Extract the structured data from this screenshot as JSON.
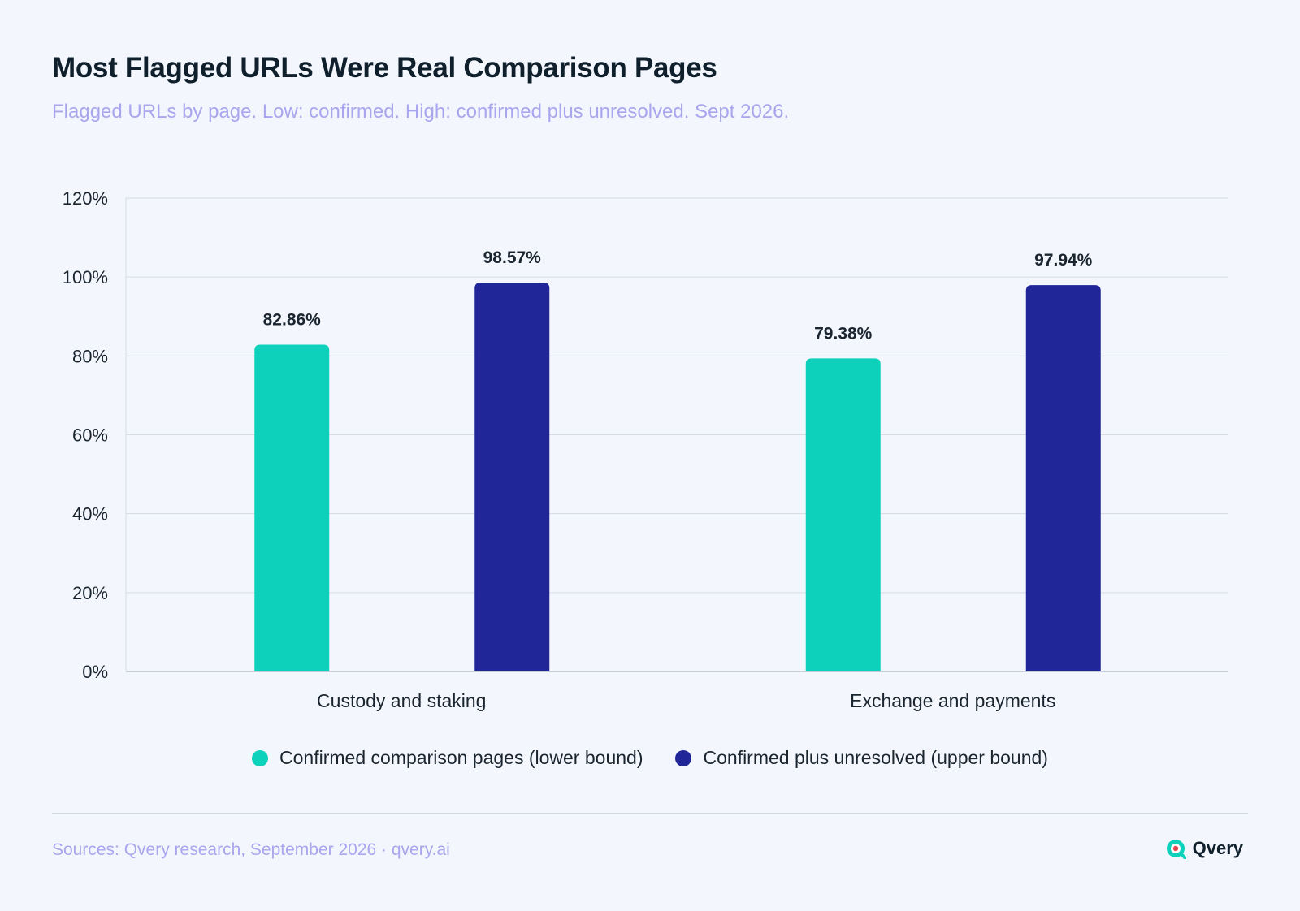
{
  "header": {
    "title": "Most Flagged URLs Were Real Comparison Pages",
    "subtitle": "Flagged URLs by page. Low: confirmed. High: confirmed plus unresolved. Sept 2026."
  },
  "chart_data": {
    "type": "bar",
    "title": "Most Flagged URLs Were Real Comparison Pages",
    "subtitle": "Flagged URLs by page. Low: confirmed. High: confirmed plus unresolved. Sept 2026.",
    "categories": [
      "Custody and staking",
      "Exchange and payments"
    ],
    "series": [
      {
        "name": "Confirmed comparison pages (lower bound)",
        "values": [
          82.86,
          79.38
        ],
        "labels": [
          "82.86%",
          "79.38%"
        ],
        "color": "#0dd1bb"
      },
      {
        "name": "Confirmed plus unresolved (upper bound)",
        "values": [
          98.57,
          97.94
        ],
        "labels": [
          "98.57%",
          "97.94%"
        ],
        "color": "#202697"
      }
    ],
    "ylim": [
      0,
      120
    ],
    "yticks": [
      "0%",
      "20%",
      "40%",
      "60%",
      "80%",
      "100%",
      "120%"
    ],
    "grid": true,
    "legend_position": "bottom"
  },
  "legend": {
    "items": [
      {
        "label": "Confirmed comparison pages (lower bound)",
        "color": "#0dd1bb"
      },
      {
        "label": "Confirmed plus unresolved (upper bound)",
        "color": "#202697"
      }
    ]
  },
  "footer": {
    "source": "Sources: Qvery research, September 2026 · qvery.ai",
    "brand": "Qvery",
    "brand_icon": "qvery-logo-icon"
  },
  "colors": {
    "background": "#f3f7fd",
    "grid": "#d5dbe4",
    "accent_subtitle": "#a9a6ee"
  }
}
